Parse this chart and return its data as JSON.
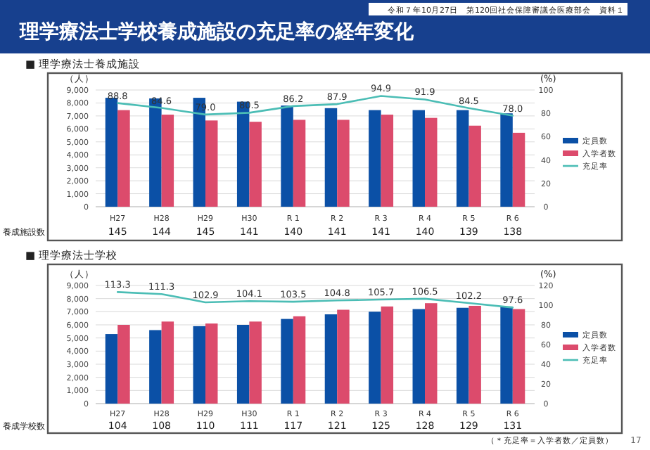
{
  "chart_data": [
    {
      "type": "bar",
      "title": "理学療法士学校養成施設の充足率の経年変化",
      "subtitle": "■ 理学療法士養成施設",
      "ylabel": "（人）",
      "y2label": "(%)",
      "categories": [
        "H27",
        "H28",
        "H29",
        "H30",
        "R 1",
        "R 2",
        "R 3",
        "R 4",
        "R 5",
        "R 6"
      ],
      "series": [
        {
          "name": "定員数",
          "color": "#0b50a6",
          "values": [
            8400,
            8350,
            8400,
            8100,
            7800,
            7600,
            7450,
            7450,
            7450,
            7200
          ]
        },
        {
          "name": "入学者数",
          "color": "#dc4b6c",
          "values": [
            7450,
            7100,
            6650,
            6550,
            6700,
            6700,
            7100,
            6850,
            6250,
            5700
          ]
        },
        {
          "name": "充足率",
          "type": "line",
          "axis": "y2",
          "color": "#4bbdb5",
          "values": [
            88.8,
            84.6,
            79.0,
            80.5,
            86.2,
            87.9,
            94.9,
            91.9,
            84.5,
            78.0
          ],
          "value_labels": [
            "88.8",
            "84.6",
            "79.0",
            "80.5",
            "86.2",
            "87.9",
            "94.9",
            "91.9",
            "84.5",
            "78.0"
          ]
        }
      ],
      "ylim": [
        0,
        9000
      ],
      "yticks": [
        0,
        {
          "value": 1000,
          "label": "1,000"
        },
        {
          "value": 2000,
          "label": "2,000"
        },
        {
          "value": 3000,
          "label": "3,000"
        },
        {
          "value": 4000,
          "label": "4,000"
        },
        {
          "value": 5000,
          "label": "5,000"
        },
        {
          "value": 6000,
          "label": "6,000"
        },
        {
          "value": 7000,
          "label": "7,000"
        },
        {
          "value": 8000,
          "label": "8,000"
        },
        {
          "value": 9000,
          "label": "9,000"
        }
      ],
      "y2lim": [
        0,
        100
      ],
      "y2ticks": [
        0,
        20,
        40,
        60,
        80,
        100
      ],
      "grid": "y",
      "legend": "right",
      "marker": "none",
      "annotations": [
        "養成施設数",
        "145",
        "144",
        "145",
        "141",
        "140",
        "141",
        "141",
        "140",
        "139",
        "138",
        "令和７年10月27日　第120回社会保障審議会医療部会　資料１"
      ]
    },
    {
      "type": "bar",
      "title": "■ 理学療法士学校",
      "ylabel": "（人）",
      "y2label": "(%)",
      "categories": [
        "H27",
        "H28",
        "H29",
        "H30",
        "R 1",
        "R 2",
        "R 3",
        "R 4",
        "R 5",
        "R 6"
      ],
      "series": [
        {
          "name": "定員数",
          "color": "#0b50a6",
          "values": [
            5300,
            5600,
            5900,
            6000,
            6450,
            6800,
            7000,
            7200,
            7300,
            7400
          ]
        },
        {
          "name": "入学者数",
          "color": "#dc4b6c",
          "values": [
            6000,
            6250,
            6100,
            6250,
            6650,
            7150,
            7400,
            7650,
            7450,
            7200
          ]
        },
        {
          "name": "充足率",
          "type": "line",
          "axis": "y2",
          "color": "#4bbdb5",
          "values": [
            113.3,
            111.3,
            102.9,
            104.1,
            103.5,
            104.8,
            105.7,
            106.5,
            102.2,
            97.6
          ],
          "value_labels": [
            "113.3",
            "111.3",
            "102.9",
            "104.1",
            "103.5",
            "104.8",
            "105.7",
            "106.5",
            "102.2",
            "97.6"
          ]
        }
      ],
      "ylim": [
        0,
        9000
      ],
      "yticks": [
        0,
        {
          "value": 1000,
          "label": "1,000"
        },
        {
          "value": 2000,
          "label": "2,000"
        },
        {
          "value": 3000,
          "label": "3,000"
        },
        {
          "value": 4000,
          "label": "4,000"
        },
        {
          "value": 5000,
          "label": "5,000"
        },
        {
          "value": 6000,
          "label": "6,000"
        },
        {
          "value": 7000,
          "label": "7,000"
        },
        {
          "value": 8000,
          "label": "8,000"
        },
        {
          "value": 9000,
          "label": "9,000"
        }
      ],
      "y2lim": [
        0,
        120
      ],
      "y2ticks": [
        0,
        20,
        40,
        60,
        80,
        100,
        120
      ],
      "grid": "y",
      "legend": "right",
      "marker": "none",
      "annotations": [
        "養成学校数",
        "104",
        "108",
        "110",
        "111",
        "117",
        "121",
        "125",
        "128",
        "129",
        "131",
        "（＊充足率＝入学者数／定員数）",
        "17"
      ]
    }
  ]
}
